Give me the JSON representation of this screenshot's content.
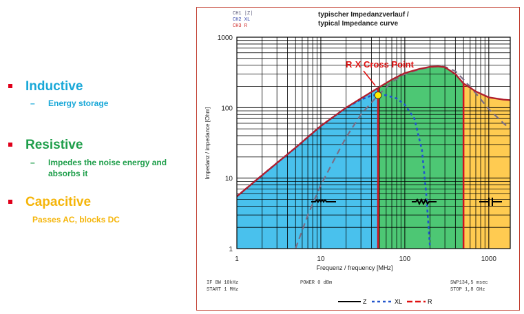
{
  "bullets": [
    {
      "title": "Inductive",
      "subtitle": "Energy storage",
      "color": "#19a8d8",
      "subcolor": "#19a8d8",
      "dash": "–"
    },
    {
      "title": "Resistive",
      "subtitle": "Impedes the noise energy and absorbs it",
      "color": "#1e9e4a",
      "subcolor": "#1e9e4a",
      "dash": "–"
    },
    {
      "title": "Capacitive",
      "subtitle": "Passes AC, blocks DC",
      "color": "#f5b50a",
      "subcolor": "#f5b50a",
      "dash": ""
    }
  ],
  "sheet": {
    "channels": [
      "CH1 |Z|",
      "CH2 XL",
      "CH3 R"
    ],
    "title_de": "typischer Impedanzverlauf /",
    "title_en": "typical Impedance curve",
    "annotation": "R-X Cross Point",
    "footer_left": [
      "IF BW 10kHz",
      "START 1 MHz"
    ],
    "footer_mid": "POWER 0 dBm",
    "footer_right": [
      "SWP134,5 msec",
      "STOP 1,8 GHz"
    ],
    "legend": [
      "Z",
      "XL",
      "R"
    ]
  },
  "chart_data": {
    "type": "line",
    "title": "typischer Impedanzverlauf / typical Impedance curve",
    "xlabel": "Frequenz / frequency [MHz]",
    "ylabel": "Impedanz / impedance [Ohm]",
    "xscale": "log",
    "yscale": "log",
    "xlim": [
      1,
      1800
    ],
    "ylim": [
      1,
      1000
    ],
    "xticks": [
      "1",
      "10",
      "100",
      "1000"
    ],
    "yticks": [
      "1",
      "10",
      "100",
      "1000"
    ],
    "grid": true,
    "legend_position": "bottom-right",
    "regions": [
      {
        "name": "Inductive",
        "from": 1,
        "to": 48,
        "color": "#29b6ea"
      },
      {
        "name": "Resistive",
        "from": 48,
        "to": 500,
        "color": "#2ebd5c"
      },
      {
        "name": "Capacitive",
        "from": 500,
        "to": 1800,
        "color": "#ffc233"
      }
    ],
    "cross_point": {
      "x": 48,
      "y": 150
    },
    "series": [
      {
        "name": "Z",
        "style": "solid",
        "color": "#b0202e",
        "x": [
          1,
          2,
          5,
          10,
          20,
          30,
          48,
          70,
          100,
          150,
          200,
          250,
          300,
          400,
          500,
          700,
          1000,
          1500,
          1800
        ],
        "y": [
          5.5,
          11,
          27,
          55,
          100,
          135,
          190,
          250,
          310,
          355,
          380,
          385,
          375,
          300,
          220,
          170,
          140,
          130,
          128
        ]
      },
      {
        "name": "XL",
        "style": "dotted",
        "color": "#2255cc",
        "x": [
          1,
          2,
          5,
          10,
          20,
          30,
          40,
          48,
          60,
          80,
          100,
          130,
          160,
          180,
          200
        ],
        "y": [
          5.5,
          11,
          27,
          55,
          100,
          130,
          148,
          152,
          150,
          135,
          110,
          70,
          25,
          6,
          1
        ]
      },
      {
        "name": "R",
        "style": "dashed",
        "color": "#7a6e86",
        "x": [
          5,
          7,
          10,
          15,
          20,
          30,
          48,
          70,
          100,
          150,
          200,
          250,
          300,
          400,
          500,
          700,
          1000,
          1500,
          1800
        ],
        "y": [
          1,
          3,
          8,
          20,
          38,
          80,
          150,
          230,
          300,
          350,
          375,
          385,
          380,
          330,
          250,
          160,
          95,
          60,
          50
        ]
      }
    ]
  }
}
